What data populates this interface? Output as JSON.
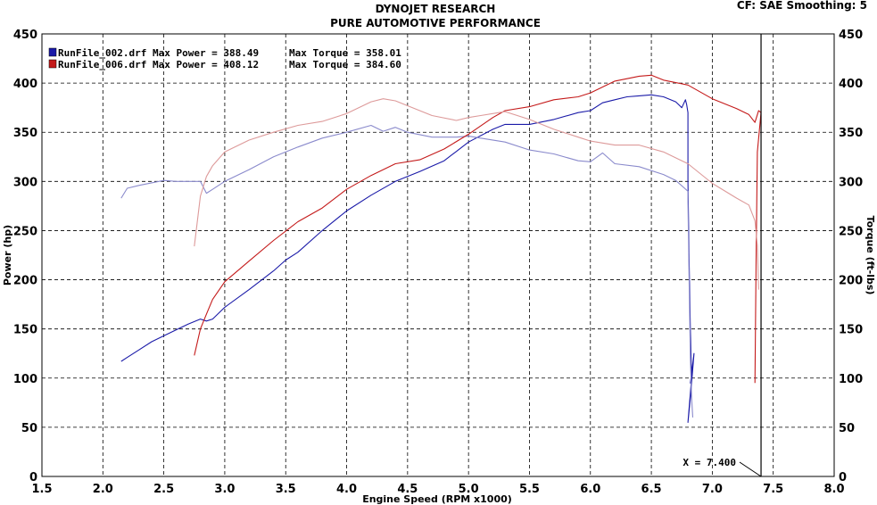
{
  "header": {
    "title": "DYNOJET RESEARCH",
    "subtitle": "PURE AUTOMOTIVE PERFORMANCE",
    "settings": "CF: SAE  Smoothing: 5"
  },
  "chart_data": {
    "type": "line",
    "xlabel": "Engine Speed (RPM x1000)",
    "ylabel_left": "Power (hp)",
    "ylabel_right": "Torque (ft-lbs)",
    "xlim": [
      1.5,
      8.0
    ],
    "ylim": [
      0,
      450
    ],
    "x_ticks": [
      "1.5",
      "2.0",
      "2.5",
      "3.0",
      "3.5",
      "4.0",
      "4.5",
      "5.0",
      "5.5",
      "6.0",
      "6.5",
      "7.0",
      "7.5",
      "8.0"
    ],
    "y_ticks": [
      "0",
      "50",
      "100",
      "150",
      "200",
      "250",
      "300",
      "350",
      "400",
      "450"
    ],
    "grid": true,
    "legend": [
      {
        "label": "RunFile_002.drf Max Power = 388.49",
        "torque_label": "Max Torque = 358.01",
        "color": "#1a1aa8"
      },
      {
        "label": "RunFile_006.drf Max Power = 408.12",
        "torque_label": "Max Torque = 384.60",
        "color": "#c41a1a"
      }
    ],
    "cursor": {
      "x": 7.4,
      "label": "X = 7.400"
    },
    "series": [
      {
        "name": "RunFile_002.drf",
        "kind": "power",
        "color": "#1a1aa8",
        "x": [
          2.15,
          2.2,
          2.3,
          2.4,
          2.5,
          2.6,
          2.7,
          2.8,
          2.85,
          2.9,
          3.0,
          3.2,
          3.4,
          3.5,
          3.6,
          3.8,
          4.0,
          4.2,
          4.4,
          4.5,
          4.6,
          4.8,
          5.0,
          5.2,
          5.3,
          5.5,
          5.7,
          5.9,
          6.0,
          6.1,
          6.2,
          6.3,
          6.4,
          6.5,
          6.6,
          6.7,
          6.75,
          6.78,
          6.79,
          6.8,
          6.8,
          6.81,
          6.82,
          6.83,
          6.8,
          6.82,
          6.85,
          6.82,
          6.84
        ],
        "y": [
          117,
          121,
          129,
          137,
          143,
          149,
          155,
          160,
          158,
          160,
          172,
          190,
          209,
          220,
          228,
          250,
          270,
          286,
          300,
          305,
          310,
          321,
          340,
          353,
          358,
          358,
          363,
          370,
          372,
          380,
          383,
          386,
          387,
          388,
          386,
          381,
          375,
          383,
          378,
          370,
          300,
          220,
          150,
          100,
          55,
          80,
          125,
          95,
          110
        ]
      },
      {
        "name": "RunFile_002.drf",
        "kind": "torque",
        "color": "#8a8acc",
        "x": [
          2.15,
          2.2,
          2.3,
          2.5,
          2.6,
          2.7,
          2.8,
          2.85,
          2.9,
          3.0,
          3.2,
          3.4,
          3.6,
          3.8,
          4.0,
          4.2,
          4.3,
          4.4,
          4.5,
          4.7,
          4.9,
          5.0,
          5.1,
          5.3,
          5.5,
          5.7,
          5.9,
          6.0,
          6.1,
          6.2,
          6.4,
          6.6,
          6.7,
          6.8,
          6.8,
          6.81,
          6.82,
          6.83,
          6.84
        ],
        "y": [
          283,
          293,
          296,
          301,
          300,
          300,
          300,
          288,
          292,
          300,
          312,
          325,
          335,
          344,
          350,
          357,
          351,
          355,
          350,
          345,
          345,
          346,
          344,
          340,
          332,
          328,
          321,
          320,
          329,
          318,
          315,
          307,
          301,
          290,
          280,
          200,
          120,
          80,
          60
        ]
      },
      {
        "name": "RunFile_006.drf",
        "kind": "power",
        "color": "#c41a1a",
        "x": [
          2.75,
          2.8,
          2.85,
          2.9,
          3.0,
          3.2,
          3.4,
          3.6,
          3.8,
          4.0,
          4.2,
          4.4,
          4.6,
          4.8,
          5.0,
          5.2,
          5.3,
          5.5,
          5.7,
          5.9,
          6.0,
          6.2,
          6.4,
          6.5,
          6.6,
          6.8,
          7.0,
          7.2,
          7.3,
          7.35,
          7.38,
          7.4,
          7.37,
          7.36,
          7.35
        ],
        "y": [
          123,
          150,
          165,
          180,
          198,
          219,
          240,
          259,
          273,
          292,
          306,
          318,
          322,
          333,
          348,
          365,
          372,
          376,
          383,
          386,
          390,
          402,
          407,
          408,
          403,
          398,
          384,
          374,
          368,
          360,
          372,
          370,
          330,
          230,
          95
        ]
      },
      {
        "name": "RunFile_006.drf",
        "kind": "torque",
        "color": "#dd9a9a",
        "x": [
          2.75,
          2.8,
          2.85,
          2.9,
          3.0,
          3.2,
          3.4,
          3.6,
          3.8,
          4.0,
          4.2,
          4.3,
          4.4,
          4.5,
          4.7,
          4.9,
          5.0,
          5.1,
          5.3,
          5.5,
          5.7,
          5.9,
          6.0,
          6.2,
          6.4,
          6.6,
          6.8,
          7.0,
          7.2,
          7.3,
          7.35,
          7.37,
          7.38
        ],
        "y": [
          234,
          285,
          305,
          316,
          330,
          342,
          350,
          357,
          361,
          369,
          381,
          384,
          382,
          377,
          367,
          362,
          365,
          367,
          371,
          363,
          353,
          345,
          341,
          337,
          337,
          330,
          318,
          298,
          283,
          276,
          260,
          235,
          190
        ]
      }
    ]
  }
}
